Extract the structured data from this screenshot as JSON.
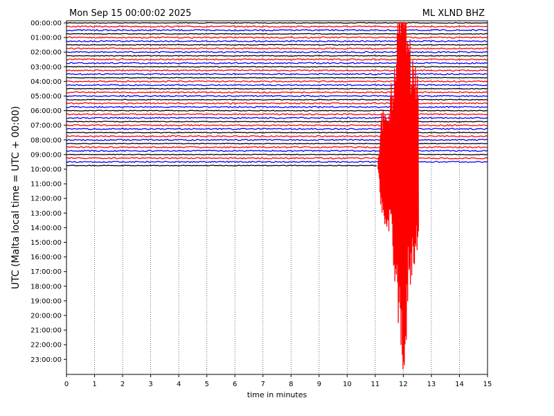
{
  "chart_data": {
    "type": "line",
    "title_left": "Mon Sep 15 00:00:02 2025",
    "title_right": "ML XLND BHZ",
    "xlabel": "time in minutes",
    "ylabel": "UTC (Malta local time = UTC + 00:00)",
    "xlim": [
      0,
      15
    ],
    "x_ticks": [
      0,
      1,
      2,
      3,
      4,
      5,
      6,
      7,
      8,
      9,
      10,
      11,
      12,
      13,
      14,
      15
    ],
    "x_grid": "dotted vertical lines at each minute",
    "y_tick_labels": [
      "00:00:00",
      "01:00:00",
      "02:00:00",
      "03:00:00",
      "04:00:00",
      "05:00:00",
      "06:00:00",
      "07:00:00",
      "08:00:00",
      "09:00:00",
      "10:00:00",
      "11:00:00",
      "12:00:00",
      "13:00:00",
      "14:00:00",
      "15:00:00",
      "16:00:00",
      "17:00:00",
      "18:00:00",
      "19:00:00",
      "20:00:00",
      "21:00:00",
      "22:00:00",
      "23:00:00"
    ],
    "row_minutes": 15,
    "rows_per_hour": 4,
    "trace_count": 40,
    "trace_colors": [
      "#000000",
      "#ff0000",
      "#0000ff"
    ],
    "event": {
      "trace_index": 39,
      "start_minute": 11.1,
      "peak_minute": 12.0,
      "end_minute": 12.55,
      "row_start": 11,
      "row_end": 14
    },
    "event_envelope": [
      [
        11.1,
        0.3
      ],
      [
        11.2,
        2.8
      ],
      [
        11.25,
        4.2
      ],
      [
        11.35,
        4.5
      ],
      [
        11.5,
        5.0
      ],
      [
        11.6,
        6.0
      ],
      [
        11.7,
        8.5
      ],
      [
        11.8,
        12.0
      ],
      [
        11.9,
        14.0
      ],
      [
        11.95,
        15.0
      ],
      [
        12.0,
        15.0
      ],
      [
        12.05,
        14.5
      ],
      [
        12.1,
        12.5
      ],
      [
        12.15,
        11.0
      ],
      [
        12.2,
        9.5
      ],
      [
        12.25,
        9.0
      ],
      [
        12.3,
        8.5
      ],
      [
        12.35,
        8.8
      ],
      [
        12.4,
        8.0
      ],
      [
        12.45,
        7.2
      ],
      [
        12.5,
        6.5
      ],
      [
        12.55,
        5.5
      ]
    ]
  }
}
